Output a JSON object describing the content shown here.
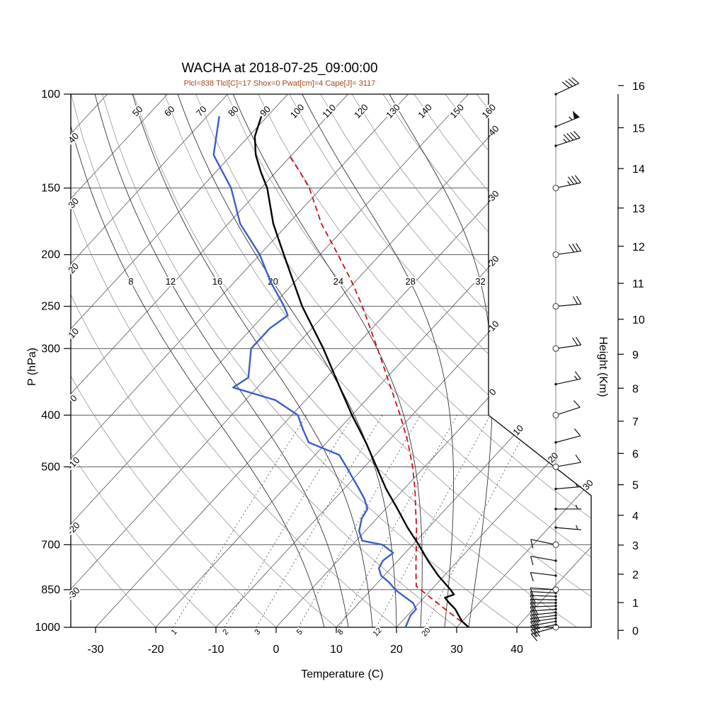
{
  "title": "WACHA at 2018-07-25_09:00:00",
  "subtitle": "Plcl=838 Tlcl[C]=17 Shox=0 Pwat[cm]=4 Cape[J]= 3117",
  "axes": {
    "pressure_label": "P (hPa)",
    "temperature_label": "Temperature (C)",
    "height_label": "Height (Km)",
    "pressure_ticks": [
      100,
      150,
      200,
      250,
      300,
      400,
      500,
      700,
      850,
      1000
    ],
    "temperature_ticks": [
      -30,
      -20,
      -10,
      0,
      10,
      20,
      30,
      40
    ],
    "height_ticks": [
      0,
      1,
      2,
      3,
      4,
      5,
      6,
      7,
      8,
      9,
      10,
      11,
      12,
      13,
      14,
      15,
      16
    ]
  },
  "background_labels": {
    "isotherms_left": [
      40,
      30,
      20,
      10,
      0,
      -10,
      -20,
      -30
    ],
    "isotherms_right": [
      0,
      -10,
      -20,
      -30,
      -40
    ],
    "isotherms_corner": [
      10,
      20,
      30
    ],
    "dry_adiabats": [
      50,
      60,
      70,
      80,
      90,
      100,
      110,
      120,
      130,
      140,
      150,
      160
    ],
    "moist_adiabats": [
      8,
      12,
      16,
      20,
      24,
      28,
      32
    ],
    "mixing_ratio": [
      1,
      2,
      3,
      5,
      8,
      12,
      20
    ]
  },
  "colors": {
    "temperature": "#000000",
    "dewpoint": "#3a5fc8",
    "parcel": "#cc1111",
    "subtitle": "#a8431a",
    "grid_isotherm": "#555555",
    "grid_pressure": "#444444",
    "grid_dry": "#888888",
    "grid_moist": "#2a2a2a",
    "grid_mix": "#444444",
    "barb": "#111111"
  },
  "chart_data": {
    "type": "line",
    "title": "WACHA at 2018-07-25_09:00:00",
    "xlabel": "Temperature (C)",
    "ylabel": "P (hPa)",
    "x_range_surface_c": [
      -30,
      40
    ],
    "pressure_range_hpa": [
      100,
      1000
    ],
    "height_range_km": [
      0,
      16
    ],
    "indices": {
      "Plcl": 838,
      "Tlcl_C": 17,
      "Shox": 0,
      "Pwat_cm": 4,
      "Cape_J": 3117
    },
    "series": [
      {
        "name": "temperature",
        "pressure_hpa": [
          1000,
          975,
          950,
          925,
          900,
          880,
          868,
          850,
          800,
          750,
          700,
          650,
          600,
          550,
          500,
          450,
          400,
          350,
          300,
          250,
          200,
          175,
          150,
          140,
          130,
          120,
          110
        ],
        "temp_c": [
          32,
          30,
          28.5,
          27,
          25,
          23.5,
          24.5,
          23.2,
          19,
          15,
          11,
          6.5,
          2,
          -3,
          -8,
          -13.5,
          -20,
          -27,
          -35,
          -45,
          -56,
          -62.5,
          -69,
          -72.5,
          -76,
          -79,
          -81
        ]
      },
      {
        "name": "dewpoint",
        "pressure_hpa": [
          1000,
          975,
          950,
          925,
          900,
          875,
          850,
          825,
          800,
          775,
          750,
          725,
          700,
          688,
          660,
          625,
          600,
          575,
          550,
          500,
          475,
          450,
          425,
          400,
          375,
          355,
          340,
          300,
          275,
          260,
          250,
          225,
          200,
          175,
          150,
          130,
          110
        ],
        "temp_c": [
          21.5,
          21,
          20.5,
          20.5,
          19,
          16.5,
          14,
          12,
          9.5,
          8,
          7.5,
          8,
          5,
          1,
          -1,
          -2.5,
          -3,
          -5,
          -7.5,
          -13,
          -16,
          -23,
          -26,
          -29,
          -35,
          -44,
          -43,
          -47,
          -47,
          -46,
          -48,
          -54,
          -60,
          -68,
          -75,
          -83,
          -88
        ]
      },
      {
        "name": "parcel_ascent",
        "pressure_hpa": [
          1000,
          950,
          900,
          860,
          838,
          800,
          750,
          700,
          650,
          600,
          550,
          500,
          450,
          400,
          350,
          300,
          250,
          225,
          200,
          175,
          150,
          140,
          130
        ],
        "temp_c": [
          32,
          27.6,
          23,
          19.2,
          17,
          15.3,
          13,
          10.6,
          8,
          5,
          1.8,
          -2,
          -6.5,
          -12,
          -18.5,
          -26,
          -35,
          -40.5,
          -47,
          -54.5,
          -62,
          -66,
          -70.5
        ]
      }
    ],
    "wind_barbs": [
      {
        "p": 1000,
        "dir": 255,
        "spd": 15
      },
      {
        "p": 988,
        "dir": 258,
        "spd": 18
      },
      {
        "p": 975,
        "dir": 260,
        "spd": 20
      },
      {
        "p": 962,
        "dir": 262,
        "spd": 22
      },
      {
        "p": 950,
        "dir": 263,
        "spd": 25
      },
      {
        "p": 938,
        "dir": 264,
        "spd": 22
      },
      {
        "p": 925,
        "dir": 266,
        "spd": 20
      },
      {
        "p": 912,
        "dir": 268,
        "spd": 18
      },
      {
        "p": 900,
        "dir": 270,
        "spd": 15
      },
      {
        "p": 888,
        "dir": 271,
        "spd": 15
      },
      {
        "p": 875,
        "dir": 272,
        "spd": 12
      },
      {
        "p": 862,
        "dir": 273,
        "spd": 12
      },
      {
        "p": 850,
        "dir": 274,
        "spd": 10
      },
      {
        "p": 800,
        "dir": 277,
        "spd": 10
      },
      {
        "p": 750,
        "dir": 280,
        "spd": 8
      },
      {
        "p": 700,
        "dir": 282,
        "spd": 8
      },
      {
        "p": 650,
        "dir": 95,
        "spd": 5
      },
      {
        "p": 600,
        "dir": 90,
        "spd": 5
      },
      {
        "p": 550,
        "dir": 85,
        "spd": 7
      },
      {
        "p": 500,
        "dir": 80,
        "spd": 10
      },
      {
        "p": 450,
        "dir": 75,
        "spd": 10
      },
      {
        "p": 400,
        "dir": 72,
        "spd": 12
      },
      {
        "p": 350,
        "dir": 78,
        "spd": 15
      },
      {
        "p": 300,
        "dir": 82,
        "spd": 18
      },
      {
        "p": 250,
        "dir": 85,
        "spd": 20
      },
      {
        "p": 200,
        "dir": 82,
        "spd": 28
      },
      {
        "p": 150,
        "dir": 78,
        "spd": 35
      },
      {
        "p": 125,
        "dir": 72,
        "spd": 45
      },
      {
        "p": 115,
        "dir": 68,
        "spd": 55
      },
      {
        "p": 100,
        "dir": 65,
        "spd": 40
      }
    ]
  }
}
